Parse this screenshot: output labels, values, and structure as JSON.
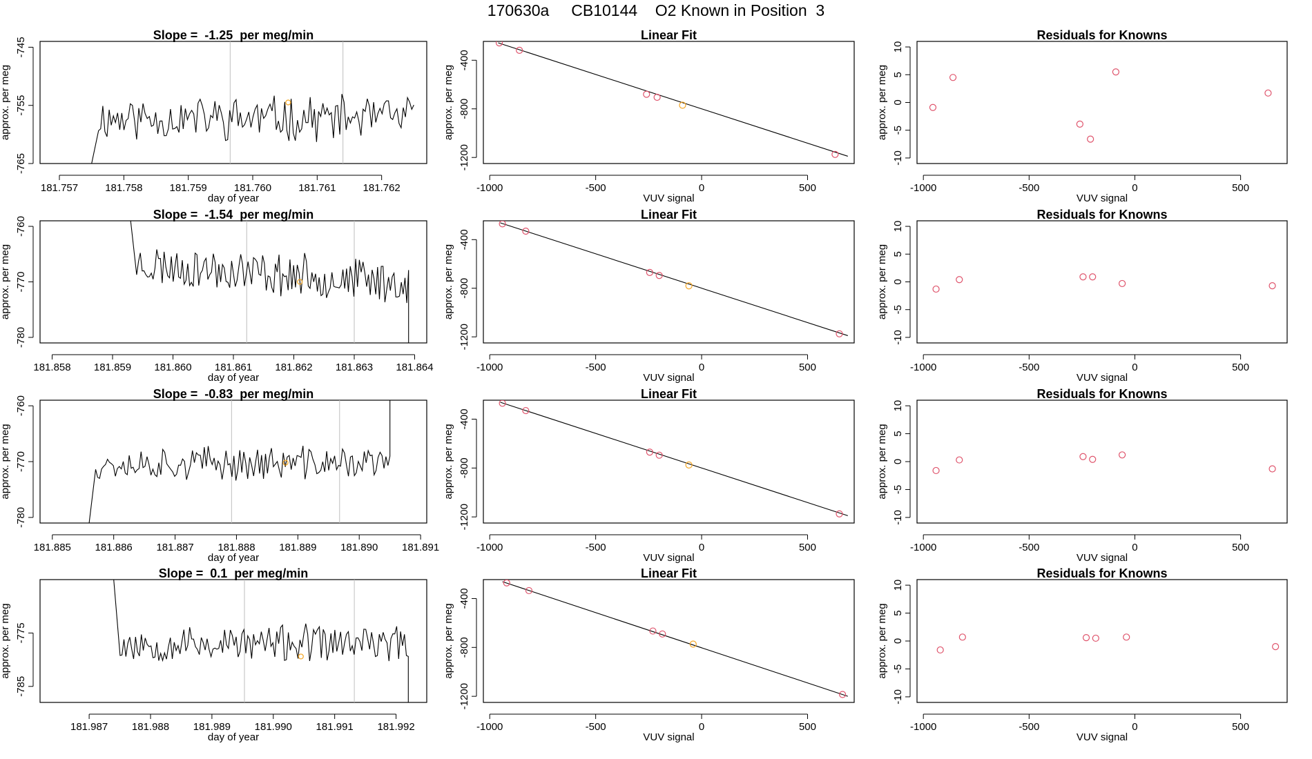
{
  "page": {
    "title": "170630a     CB10144    O2 Known in Position  3"
  },
  "colors": {
    "line": "#000000",
    "points": "#df536b",
    "highlight": "#f5a623",
    "vline": "#bebebe"
  },
  "chart_data": [
    {
      "type": "line",
      "title": "Slope =  -1.25  per meg/min",
      "xlabel": "day of year",
      "ylabel": "approx. per meg",
      "xlim": [
        181.7567,
        181.7627
      ],
      "ylim": [
        -765,
        -744
      ],
      "xticks": [
        "181.757",
        "181.758",
        "181.759",
        "181.760",
        "181.761",
        "181.762"
      ],
      "yticks": [
        "-745",
        "-755",
        "-765"
      ],
      "vlines": [
        181.75965,
        181.7614
      ],
      "x_start": 181.7575,
      "x_end": 181.7625,
      "y_start": -765,
      "y_mean": -757.2,
      "y_amp": 3.3,
      "seed": 11,
      "highlight": {
        "x": 181.76055,
        "y": -754.5
      }
    },
    {
      "type": "scatter",
      "title": "Linear Fit",
      "xlabel": "VUV signal",
      "ylabel": "approx. per meg",
      "xlim": [
        -1030,
        720
      ],
      "ylim": [
        -1250,
        -245
      ],
      "xticks": [
        "-1000",
        "-500",
        "0",
        "500"
      ],
      "yticks": [
        "-400",
        "-800",
        "-1200"
      ],
      "fit_line": [
        [
          -960,
          -257
        ],
        [
          690,
          -1190
        ]
      ],
      "points": [
        {
          "x": -955,
          "y": -257
        },
        {
          "x": -860,
          "y": -318
        },
        {
          "x": -260,
          "y": -680
        },
        {
          "x": -210,
          "y": -705
        },
        {
          "x": -90,
          "y": -770,
          "highlight": true
        },
        {
          "x": 630,
          "y": -1175
        }
      ]
    },
    {
      "type": "scatter",
      "title": "Residuals for Knowns",
      "xlabel": "VUV signal",
      "ylabel": "approx. per meg",
      "xlim": [
        -1030,
        720
      ],
      "ylim": [
        -11,
        11
      ],
      "xticks": [
        "-1000",
        "-500",
        "0",
        "500"
      ],
      "yticks": [
        "10",
        "5",
        "0",
        "-5",
        "-10"
      ],
      "points": [
        {
          "x": -955,
          "y": -0.9
        },
        {
          "x": -860,
          "y": 4.5
        },
        {
          "x": -260,
          "y": -3.9
        },
        {
          "x": -210,
          "y": -6.6
        },
        {
          "x": -90,
          "y": 5.5
        },
        {
          "x": 630,
          "y": 1.7
        }
      ]
    },
    {
      "type": "line",
      "title": "Slope =  -1.54  per meg/min",
      "xlabel": "day of year",
      "ylabel": "approx. per meg",
      "xlim": [
        181.8578,
        181.8642
      ],
      "ylim": [
        -781,
        -759
      ],
      "xticks": [
        "181.858",
        "181.859",
        "181.860",
        "181.861",
        "181.862",
        "181.863",
        "181.864"
      ],
      "yticks": [
        "-760",
        "-770",
        "-780"
      ],
      "vlines": [
        181.86122,
        181.863
      ],
      "x_start": 181.8593,
      "x_end": 181.8639,
      "y_start": -759,
      "y_end": -781,
      "y_mean": -768.5,
      "y_amp": 3.3,
      "drift": -3.5,
      "seed": 23,
      "highlight": {
        "x": 181.8621,
        "y": -770.0
      }
    },
    {
      "type": "scatter",
      "title": "Linear Fit",
      "xlabel": "VUV signal",
      "ylabel": "approx. per meg",
      "xlim": [
        -1030,
        720
      ],
      "ylim": [
        -1250,
        -245
      ],
      "xticks": [
        "-1000",
        "-500",
        "0",
        "500"
      ],
      "yticks": [
        "-400",
        "-800",
        "-1200"
      ],
      "fit_line": [
        [
          -950,
          -262
        ],
        [
          690,
          -1190
        ]
      ],
      "points": [
        {
          "x": -940,
          "y": -270
        },
        {
          "x": -830,
          "y": -330
        },
        {
          "x": -245,
          "y": -670
        },
        {
          "x": -200,
          "y": -695
        },
        {
          "x": -60,
          "y": -780,
          "highlight": true
        },
        {
          "x": 650,
          "y": -1175
        }
      ]
    },
    {
      "type": "scatter",
      "title": "Residuals for Knowns",
      "xlabel": "VUV signal",
      "ylabel": "approx. per meg",
      "xlim": [
        -1030,
        720
      ],
      "ylim": [
        -11,
        11
      ],
      "xticks": [
        "-1000",
        "-500",
        "0",
        "500"
      ],
      "yticks": [
        "10",
        "5",
        "0",
        "-5",
        "-10"
      ],
      "points": [
        {
          "x": -940,
          "y": -1.3
        },
        {
          "x": -830,
          "y": 0.4
        },
        {
          "x": -245,
          "y": 0.9
        },
        {
          "x": -200,
          "y": 0.9
        },
        {
          "x": -60,
          "y": -0.3
        },
        {
          "x": 650,
          "y": -0.7
        }
      ]
    },
    {
      "type": "line",
      "title": "Slope =  -0.83  per meg/min",
      "xlabel": "day of year",
      "ylabel": "approx. per meg",
      "xlim": [
        181.8848,
        181.8911
      ],
      "ylim": [
        -781,
        -759
      ],
      "xticks": [
        "181.885",
        "181.886",
        "181.887",
        "181.888",
        "181.889",
        "181.890",
        "181.891"
      ],
      "yticks": [
        "-760",
        "-770",
        "-780"
      ],
      "vlines": [
        181.88792,
        181.88968
      ],
      "x_start": 181.8856,
      "x_end": 181.8905,
      "y_start": -781,
      "y_end": -759,
      "y_mean": -770.3,
      "y_amp": 2.6,
      "seed": 37,
      "highlight": {
        "x": 181.8888,
        "y": -770.2
      }
    },
    {
      "type": "scatter",
      "title": "Linear Fit",
      "xlabel": "VUV signal",
      "ylabel": "approx. per meg",
      "xlim": [
        -1030,
        720
      ],
      "ylim": [
        -1250,
        -245
      ],
      "xticks": [
        "-1000",
        "-500",
        "0",
        "500"
      ],
      "yticks": [
        "-400",
        "-800",
        "-1200"
      ],
      "fit_line": [
        [
          -950,
          -262
        ],
        [
          690,
          -1190
        ]
      ],
      "points": [
        {
          "x": -940,
          "y": -270
        },
        {
          "x": -830,
          "y": -330
        },
        {
          "x": -245,
          "y": -670
        },
        {
          "x": -200,
          "y": -695
        },
        {
          "x": -60,
          "y": -775,
          "highlight": true
        },
        {
          "x": 650,
          "y": -1175
        }
      ]
    },
    {
      "type": "scatter",
      "title": "Residuals for Knowns",
      "xlabel": "VUV signal",
      "ylabel": "approx. per meg",
      "xlim": [
        -1030,
        720
      ],
      "ylim": [
        -11,
        11
      ],
      "xticks": [
        "-1000",
        "-500",
        "0",
        "500"
      ],
      "yticks": [
        "10",
        "5",
        "0",
        "-5",
        "-10"
      ],
      "points": [
        {
          "x": -940,
          "y": -1.6
        },
        {
          "x": -830,
          "y": 0.3
        },
        {
          "x": -245,
          "y": 0.9
        },
        {
          "x": -200,
          "y": 0.4
        },
        {
          "x": -60,
          "y": 1.2
        },
        {
          "x": 650,
          "y": -1.3
        }
      ]
    },
    {
      "type": "line",
      "title": "Slope =  0.1  per meg/min",
      "xlabel": "day of year",
      "ylabel": "approx. per meg",
      "xlim": [
        181.9862,
        181.9925
      ],
      "ylim": [
        -788,
        -765
      ],
      "xticks": [
        "181.987",
        "181.988",
        "181.989",
        "181.990",
        "181.991",
        "181.992"
      ],
      "yticks": [
        "-775",
        "-785"
      ],
      "vlines": [
        181.98953,
        181.99132
      ],
      "x_start": 181.9874,
      "x_end": 181.9922,
      "y_start": -765,
      "y_end": -788,
      "y_mean": -777.0,
      "y_amp": 3.0,
      "seed": 53,
      "highlight": {
        "x": 181.99045,
        "y": -779.4
      }
    },
    {
      "type": "scatter",
      "title": "Linear Fit",
      "xlabel": "VUV signal",
      "ylabel": "approx. per meg",
      "xlim": [
        -1030,
        720
      ],
      "ylim": [
        -1250,
        -245
      ],
      "xticks": [
        "-1000",
        "-500",
        "0",
        "500"
      ],
      "yticks": [
        "-400",
        "-800",
        "-1200"
      ],
      "fit_line": [
        [
          -940,
          -262
        ],
        [
          690,
          -1200
        ]
      ],
      "points": [
        {
          "x": -920,
          "y": -272
        },
        {
          "x": -815,
          "y": -335
        },
        {
          "x": -230,
          "y": -666
        },
        {
          "x": -185,
          "y": -690
        },
        {
          "x": -40,
          "y": -773,
          "highlight": true
        },
        {
          "x": 665,
          "y": -1185
        }
      ]
    },
    {
      "type": "scatter",
      "title": "Residuals for Knowns",
      "xlabel": "VUV signal",
      "ylabel": "approx. per meg",
      "xlim": [
        -1030,
        720
      ],
      "ylim": [
        -11,
        11
      ],
      "xticks": [
        "-1000",
        "-500",
        "0",
        "500"
      ],
      "yticks": [
        "10",
        "5",
        "0",
        "-5",
        "-10"
      ],
      "points": [
        {
          "x": -920,
          "y": -1.6
        },
        {
          "x": -815,
          "y": 0.7
        },
        {
          "x": -230,
          "y": 0.6
        },
        {
          "x": -185,
          "y": 0.5
        },
        {
          "x": -40,
          "y": 0.7
        },
        {
          "x": 665,
          "y": -1.0
        }
      ]
    }
  ]
}
